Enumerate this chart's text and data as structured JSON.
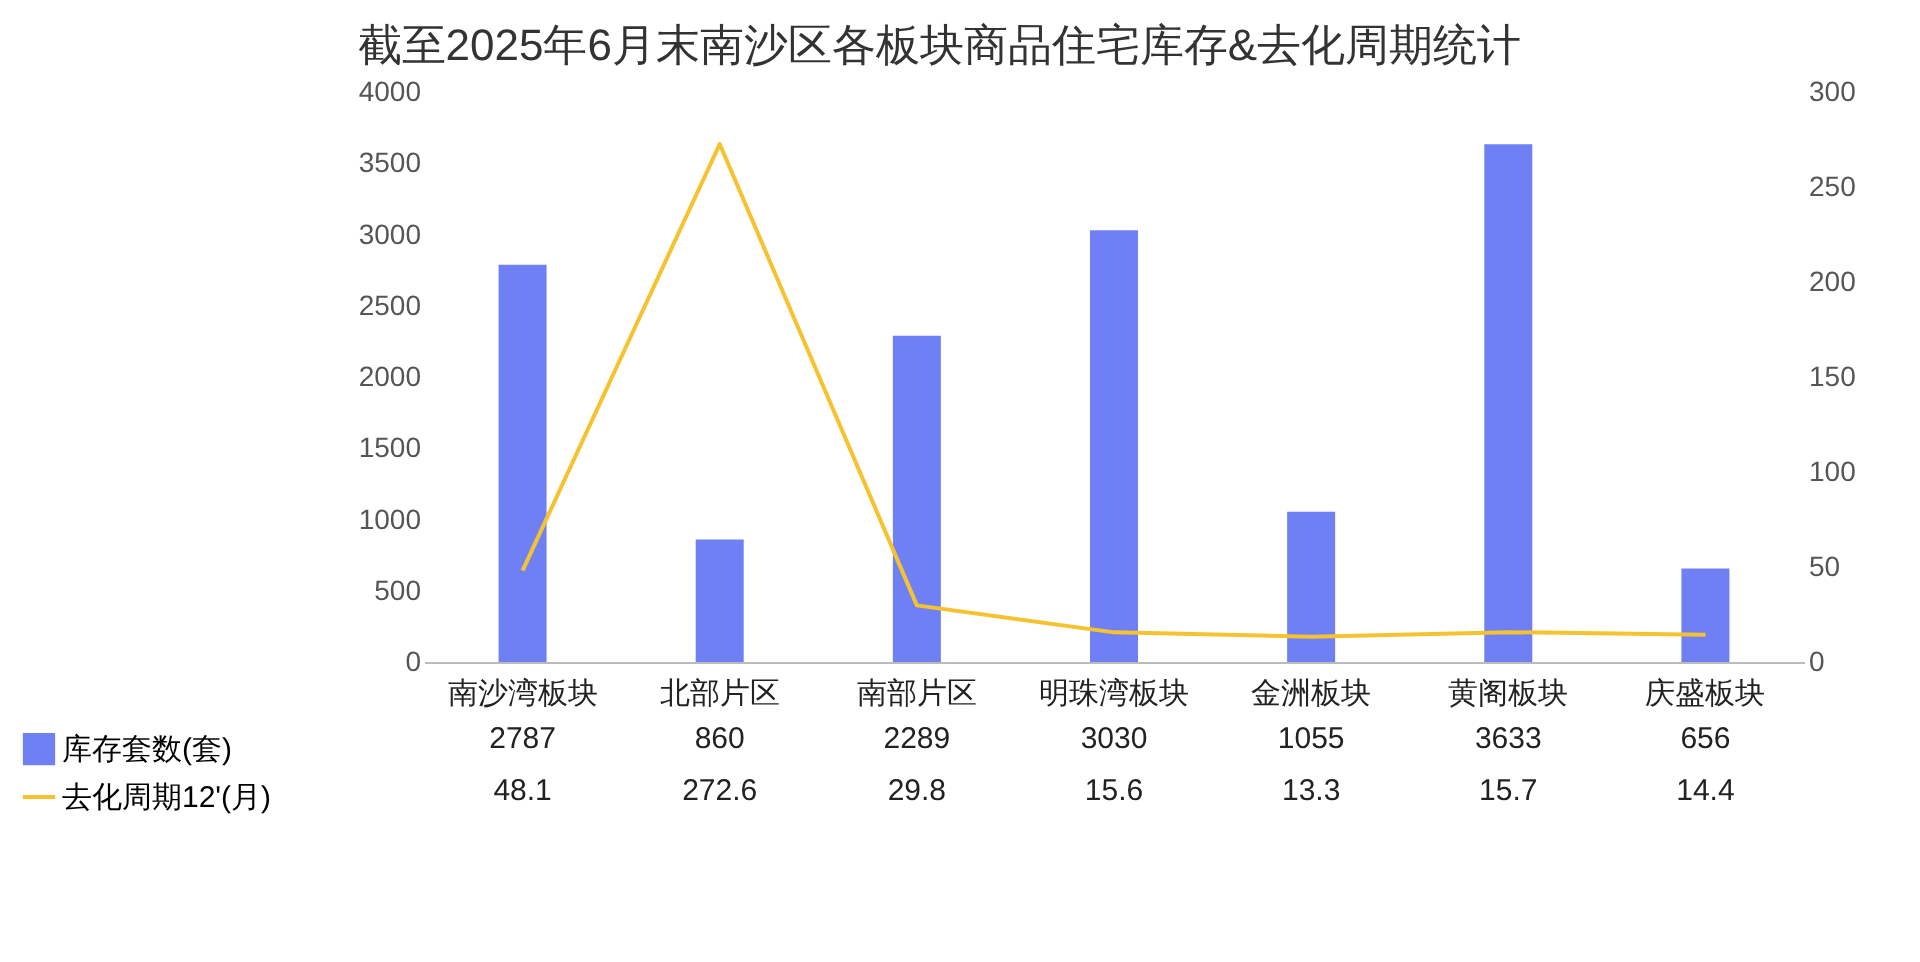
{
  "chart_data": {
    "type": "bar",
    "title": "截至2025年6月末南沙区各板块商品住宅库存&去化周期统计",
    "categories": [
      "南沙湾板块",
      "北部片区",
      "南部片区",
      "明珠湾板块",
      "金洲板块",
      "黄阁板块",
      "庆盛板块"
    ],
    "series": [
      {
        "name": "库存套数(套)",
        "color": "#6f80f5",
        "values": [
          2787,
          860,
          2289,
          3030,
          1055,
          3633,
          656
        ]
      },
      {
        "name": "去化周期12'(月)",
        "type": "line",
        "axis": "y2",
        "color": "#f5c230",
        "values": [
          48.1,
          272.6,
          29.8,
          15.6,
          13.3,
          15.7,
          14.4
        ]
      }
    ],
    "ylim": [
      0,
      4000
    ],
    "yticks": [
      0,
      500,
      1000,
      1500,
      2000,
      2500,
      3000,
      3500,
      4000
    ],
    "y2lim": [
      0,
      300
    ],
    "y2ticks": [
      0,
      50,
      100,
      150,
      200,
      250,
      300
    ],
    "data_labels": true,
    "legend": "bottom left",
    "marker": "none"
  }
}
